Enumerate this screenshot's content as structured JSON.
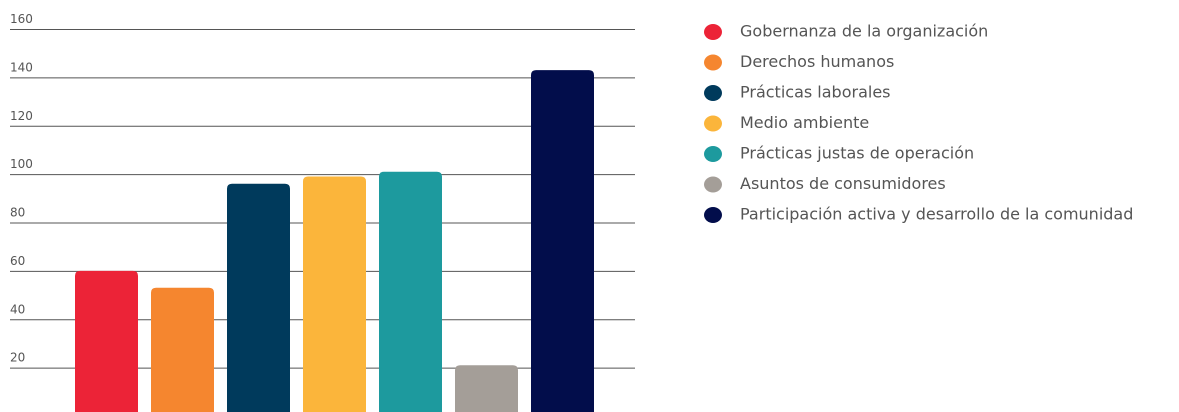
{
  "chart_data": {
    "type": "bar",
    "categories": [
      "Gobernanza de la organización",
      "Derechos humanos",
      "Prácticas laborales",
      "Medio ambiente",
      "Prácticas justas de operación",
      "Asuntos de consumidores",
      "Participación activa y desarrollo de la comunidad"
    ],
    "values": [
      60,
      53,
      96,
      99,
      101,
      21,
      143
    ],
    "colors": [
      "#ec2337",
      "#f5862f",
      "#003a5c",
      "#fbb53b",
      "#1d9a9e",
      "#a49e98",
      "#020d4b"
    ],
    "ylim": [
      0,
      160
    ],
    "yticks": [
      20,
      40,
      60,
      80,
      100,
      120,
      140,
      160
    ],
    "grid": true
  }
}
